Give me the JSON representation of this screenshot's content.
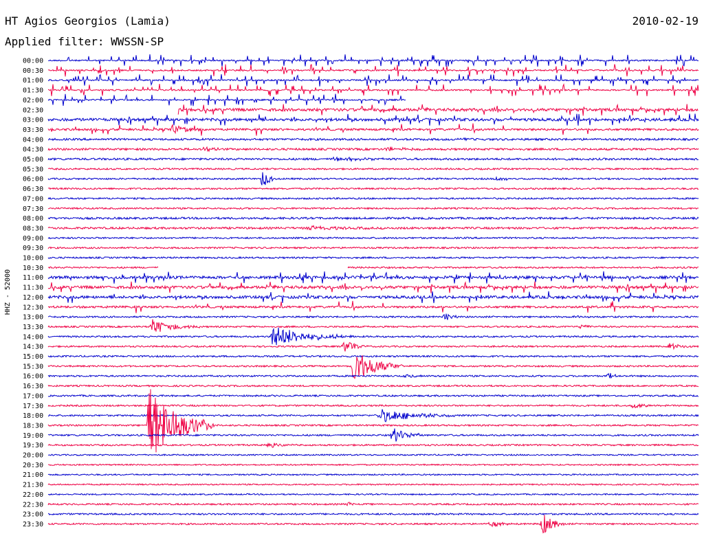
{
  "header": {
    "station": "HT Agios Georgios (Lamia)",
    "date": "2010-02-19",
    "filter_label": "Applied filter: WWSSN-SP"
  },
  "chart_data": {
    "type": "line",
    "ylabel": "HHZ - 52000",
    "rows": [
      {
        "label": "00:00",
        "color": "#0000cc",
        "noise": 1,
        "spikes": "dense"
      },
      {
        "label": "00:30",
        "color": "#ee0044",
        "noise": 1,
        "spikes": "dense"
      },
      {
        "label": "01:00",
        "color": "#0000cc",
        "noise": 1,
        "spikes": "dense"
      },
      {
        "label": "01:30",
        "color": "#ee0044",
        "noise": 1,
        "spikes": "dense"
      },
      {
        "label": "02:00",
        "color": "#0000cc",
        "noise": 1,
        "spikes": "dense",
        "end": 0.55
      },
      {
        "label": "02:30",
        "color": "#ee0044",
        "noise": 2,
        "spikes": "medium",
        "start": 0.2
      },
      {
        "label": "03:00",
        "color": "#0000cc",
        "noise": 2,
        "spikes": "medium"
      },
      {
        "label": "03:30",
        "color": "#ee0044",
        "noise": 1.5,
        "spikes": "sparse",
        "events": [
          {
            "t": 0.19,
            "amp": 8,
            "dur": 0.02
          }
        ]
      },
      {
        "label": "04:00",
        "color": "#0000cc",
        "noise": 1.5,
        "events": [
          {
            "t": 0.63,
            "amp": 4,
            "dur": 0.01
          }
        ]
      },
      {
        "label": "04:30",
        "color": "#ee0044",
        "noise": 1.5,
        "events": [
          {
            "t": 0.24,
            "amp": 6,
            "dur": 0.01
          },
          {
            "t": 0.52,
            "amp": 3,
            "dur": 0.03
          }
        ]
      },
      {
        "label": "05:00",
        "color": "#0000cc",
        "noise": 1.5,
        "events": [
          {
            "t": 0.44,
            "amp": 3,
            "dur": 0.04
          }
        ]
      },
      {
        "label": "05:30",
        "color": "#ee0044",
        "noise": 1.2
      },
      {
        "label": "06:00",
        "color": "#0000cc",
        "noise": 1.2,
        "events": [
          {
            "t": 0.33,
            "amp": 14,
            "dur": 0.01
          },
          {
            "t": 0.69,
            "amp": 3,
            "dur": 0.02
          }
        ]
      },
      {
        "label": "06:30",
        "color": "#ee0044",
        "noise": 1.2
      },
      {
        "label": "07:00",
        "color": "#0000cc",
        "noise": 1.2
      },
      {
        "label": "07:30",
        "color": "#ee0044",
        "noise": 1.2
      },
      {
        "label": "08:00",
        "color": "#0000cc",
        "noise": 1.5
      },
      {
        "label": "08:30",
        "color": "#ee0044",
        "noise": 1.5,
        "events": [
          {
            "t": 0.4,
            "amp": 3,
            "dur": 0.05
          }
        ]
      },
      {
        "label": "09:00",
        "color": "#0000cc",
        "noise": 1.2
      },
      {
        "label": "09:30",
        "color": "#ee0044",
        "noise": 1.2
      },
      {
        "label": "10:00",
        "color": "#0000cc",
        "noise": 1.2
      },
      {
        "label": "10:30",
        "color": "#ee0044",
        "noise": 1.2,
        "gap": [
          0.17,
          0.46
        ]
      },
      {
        "label": "11:00",
        "color": "#0000cc",
        "noise": 2,
        "spikes": "medium"
      },
      {
        "label": "11:30",
        "color": "#ee0044",
        "noise": 2,
        "spikes": "medium"
      },
      {
        "label": "12:00",
        "color": "#0000cc",
        "noise": 2,
        "spikes": "sparse"
      },
      {
        "label": "12:30",
        "color": "#ee0044",
        "noise": 1.5,
        "spikes": "sparse"
      },
      {
        "label": "13:00",
        "color": "#0000cc",
        "noise": 1.2,
        "events": [
          {
            "t": 0.61,
            "amp": 7,
            "dur": 0.01
          },
          {
            "t": 0.81,
            "amp": 3,
            "dur": 0.01
          }
        ]
      },
      {
        "label": "13:30",
        "color": "#ee0044",
        "noise": 1.2,
        "events": [
          {
            "t": 0.16,
            "amp": 11,
            "dur": 0.03
          },
          {
            "t": 0.82,
            "amp": 4,
            "dur": 0.01
          }
        ]
      },
      {
        "label": "14:00",
        "color": "#0000cc",
        "noise": 1.2,
        "events": [
          {
            "t": 0.345,
            "amp": 16,
            "dur": 0.05
          }
        ]
      },
      {
        "label": "14:30",
        "color": "#ee0044",
        "noise": 1.2,
        "events": [
          {
            "t": 0.455,
            "amp": 11,
            "dur": 0.015
          },
          {
            "t": 0.955,
            "amp": 5,
            "dur": 0.02
          }
        ]
      },
      {
        "label": "15:00",
        "color": "#0000cc",
        "noise": 1.2
      },
      {
        "label": "15:30",
        "color": "#ee0044",
        "noise": 1.2,
        "events": [
          {
            "t": 0.47,
            "amp": 28,
            "dur": 0.03
          }
        ]
      },
      {
        "label": "16:00",
        "color": "#0000cc",
        "noise": 1.2,
        "events": [
          {
            "t": 0.55,
            "amp": 4,
            "dur": 0.01
          },
          {
            "t": 0.86,
            "amp": 5,
            "dur": 0.01
          }
        ]
      },
      {
        "label": "16:30",
        "color": "#ee0044",
        "noise": 1.2
      },
      {
        "label": "17:00",
        "color": "#0000cc",
        "noise": 1.2
      },
      {
        "label": "17:30",
        "color": "#ee0044",
        "noise": 1.2,
        "events": [
          {
            "t": 0.9,
            "amp": 6,
            "dur": 0.01
          }
        ]
      },
      {
        "label": "18:00",
        "color": "#0000cc",
        "noise": 1.2,
        "events": [
          {
            "t": 0.51,
            "amp": 10,
            "dur": 0.05
          }
        ]
      },
      {
        "label": "18:30",
        "color": "#ee0044",
        "noise": 1.2,
        "events": [
          {
            "t": 0.155,
            "amp": 60,
            "dur": 0.04
          }
        ]
      },
      {
        "label": "19:00",
        "color": "#0000cc",
        "noise": 1.2,
        "events": [
          {
            "t": 0.53,
            "amp": 12,
            "dur": 0.02
          }
        ]
      },
      {
        "label": "19:30",
        "color": "#ee0044",
        "noise": 1.2,
        "events": [
          {
            "t": 0.34,
            "amp": 4,
            "dur": 0.02
          }
        ]
      },
      {
        "label": "20:00",
        "color": "#0000cc",
        "noise": 1
      },
      {
        "label": "20:30",
        "color": "#ee0044",
        "noise": 1
      },
      {
        "label": "21:00",
        "color": "#0000cc",
        "noise": 1
      },
      {
        "label": "21:30",
        "color": "#ee0044",
        "noise": 1
      },
      {
        "label": "22:00",
        "color": "#0000cc",
        "noise": 1
      },
      {
        "label": "22:30",
        "color": "#ee0044",
        "noise": 1.2,
        "events": [
          {
            "t": 0.46,
            "amp": 4,
            "dur": 0.01
          }
        ]
      },
      {
        "label": "23:00",
        "color": "#0000cc",
        "noise": 1.2
      },
      {
        "label": "23:30",
        "color": "#ee0044",
        "noise": 1.2,
        "events": [
          {
            "t": 0.68,
            "amp": 5,
            "dur": 0.015
          },
          {
            "t": 0.76,
            "amp": 16,
            "dur": 0.015
          }
        ]
      }
    ]
  }
}
